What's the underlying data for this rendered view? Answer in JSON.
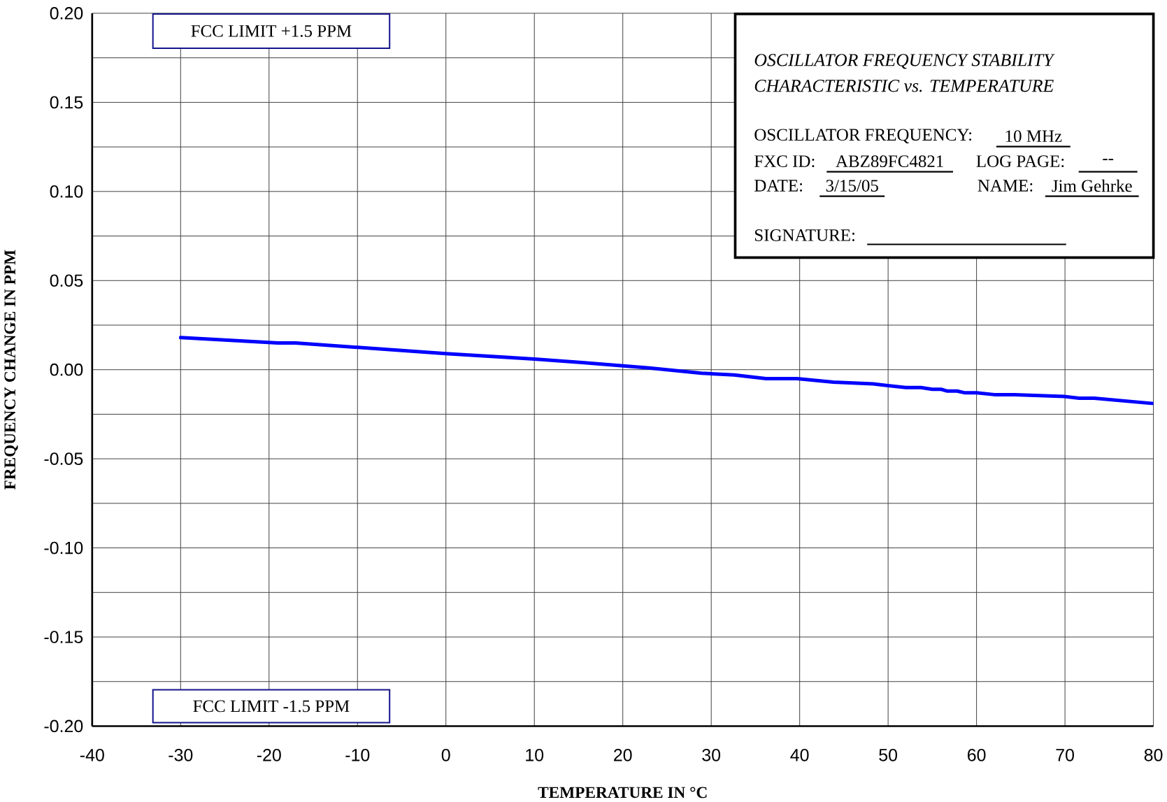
{
  "chart_data": {
    "type": "line",
    "xlabel": "TEMPERATURE IN °C",
    "ylabel": "FREQUENCY CHANGE IN PPM",
    "xlim": [
      -40,
      80
    ],
    "ylim": [
      -0.2,
      0.2
    ],
    "xticks": [
      -40,
      -30,
      -20,
      -10,
      0,
      10,
      20,
      30,
      40,
      50,
      60,
      70,
      80
    ],
    "yticks": [
      {
        "value": -0.2,
        "label": "-0.20"
      },
      {
        "value": -0.175,
        "label": null
      },
      {
        "value": -0.15,
        "label": "-0.15"
      },
      {
        "value": -0.125,
        "label": null
      },
      {
        "value": -0.1,
        "label": "-0.10"
      },
      {
        "value": -0.075,
        "label": null
      },
      {
        "value": -0.05,
        "label": "-0.05"
      },
      {
        "value": -0.025,
        "label": null
      },
      {
        "value": 0,
        "label": "0.00"
      },
      {
        "value": 0.025,
        "label": null
      },
      {
        "value": 0.05,
        "label": "0.05"
      },
      {
        "value": 0.075,
        "label": null
      },
      {
        "value": 0.1,
        "label": "0.10"
      },
      {
        "value": 0.125,
        "label": null
      },
      {
        "value": 0.15,
        "label": "0.15"
      },
      {
        "value": 0.175,
        "label": null
      },
      {
        "value": 0.2,
        "label": "0.20"
      }
    ],
    "grid": true,
    "line_style": "solid",
    "series": [
      {
        "color": "#0000ff",
        "x": [
          -30,
          -19,
          -17,
          0,
          10,
          15.4,
          23,
          28.9,
          32.6,
          36.2,
          39.7,
          43.8,
          48.3,
          52,
          53.7,
          55,
          56,
          56.7,
          57.8,
          58.7,
          60,
          62,
          64.3,
          69.9,
          71.6,
          73.3,
          80
        ],
        "values": [
          0.018,
          0.015,
          0.015,
          0.009,
          0.006,
          0.004,
          0.001,
          -0.002,
          -0.003,
          -0.005,
          -0.005,
          -0.007,
          -0.008,
          -0.01,
          -0.01,
          -0.011,
          -0.011,
          -0.012,
          -0.012,
          -0.013,
          -0.013,
          -0.014,
          -0.014,
          -0.015,
          -0.016,
          -0.016,
          -0.019
        ]
      }
    ],
    "annotations": [
      "FCC LIMIT +1.5 PPM",
      "FCC LIMIT -1.5 PPM",
      "OSCILLATOR FREQUENCY STABILITY",
      "CHARACTERISTIC vs. TEMPERATURE",
      "OSCILLATOR FREQUENCY:",
      "10 MHz",
      "FXC ID:",
      "ABZ89FC4821",
      "LOG PAGE:",
      "--",
      "DATE:",
      "3/15/05",
      "NAME:",
      "Jim Gehrke",
      "SIGNATURE:"
    ]
  }
}
